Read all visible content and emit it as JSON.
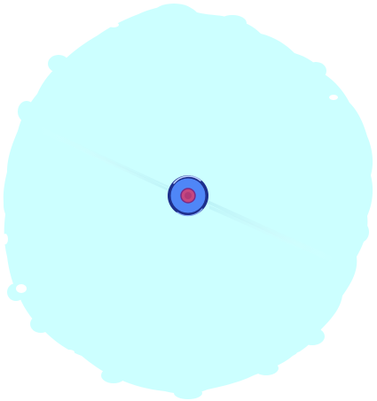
{
  "palette": {
    "background": "#ffffff",
    "cloud": "#ccffff",
    "streak": "#b9eef4",
    "disc_fill": "#4f86f7",
    "disc_ring": "#1e2f8c",
    "disc_highlight": "#b8cdfd",
    "core_fill": "#c5477f",
    "core_stroke": "#7a2a86"
  },
  "icons": {
    "center_marker": "target-icon"
  }
}
